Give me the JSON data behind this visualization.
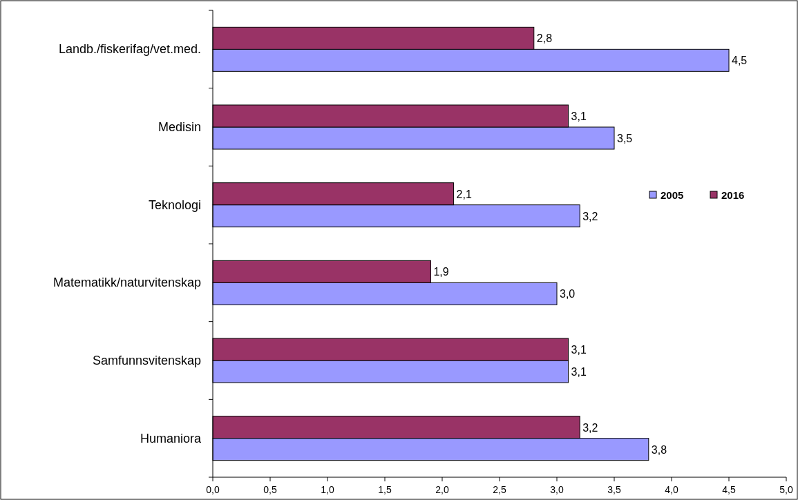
{
  "chart_data": {
    "type": "bar",
    "orientation": "horizontal",
    "categories": [
      "Landb./fiskerifag/vet.med.",
      "Medisin",
      "Teknologi",
      "Matematikk/naturvitenskap",
      "Samfunnsvitenskap",
      "Humaniora"
    ],
    "series": [
      {
        "name": "2005",
        "color": "#9999ff",
        "values": [
          4.5,
          3.5,
          3.2,
          3.0,
          3.1,
          3.8
        ],
        "value_labels": [
          "4,5",
          "3,5",
          "3,2",
          "3,0",
          "3,1",
          "3,8"
        ]
      },
      {
        "name": "2016",
        "color": "#993366",
        "values": [
          2.8,
          3.1,
          2.1,
          1.9,
          3.1,
          3.2
        ],
        "value_labels": [
          "2,8",
          "3,1",
          "2,1",
          "1,9",
          "3,1",
          "3,2"
        ]
      }
    ],
    "xlim": [
      0,
      5
    ],
    "xticks": [
      {
        "value": 0,
        "label": "0,0"
      },
      {
        "value": 0.5,
        "label": "0,5"
      },
      {
        "value": 1,
        "label": "1,0"
      },
      {
        "value": 1.5,
        "label": "1,5"
      },
      {
        "value": 2,
        "label": "2,0"
      },
      {
        "value": 2.5,
        "label": "2,5"
      },
      {
        "value": 3,
        "label": "3,0"
      },
      {
        "value": 3.5,
        "label": "3,5"
      },
      {
        "value": 4,
        "label": "4,0"
      },
      {
        "value": 4.5,
        "label": "4,5"
      },
      {
        "value": 5,
        "label": "5,0"
      }
    ],
    "grid": false,
    "legend": "right"
  }
}
